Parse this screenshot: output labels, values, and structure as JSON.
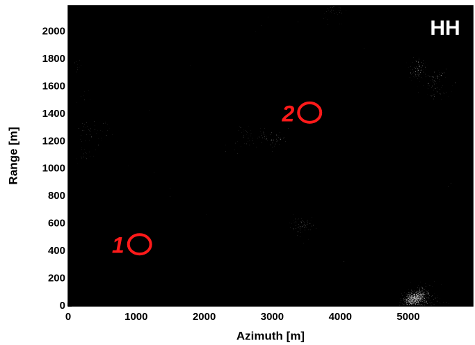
{
  "chart_data": {
    "type": "image",
    "channel_label": "HH",
    "x_label": "Azimuth [m]",
    "y_label": "Range [m]",
    "xlim": [
      0,
      5950
    ],
    "ylim": [
      0,
      2190
    ],
    "xticks": [
      0,
      1000,
      2000,
      3000,
      4000,
      5000
    ],
    "yticks": [
      0,
      200,
      400,
      600,
      800,
      1000,
      1200,
      1400,
      1600,
      1800,
      2000
    ],
    "annotations": [
      {
        "label": "1",
        "x": 1050,
        "y": 450,
        "color": "#ff1a1a"
      },
      {
        "label": "2",
        "x": 3550,
        "y": 1410,
        "color": "#ff1a1a"
      }
    ]
  }
}
